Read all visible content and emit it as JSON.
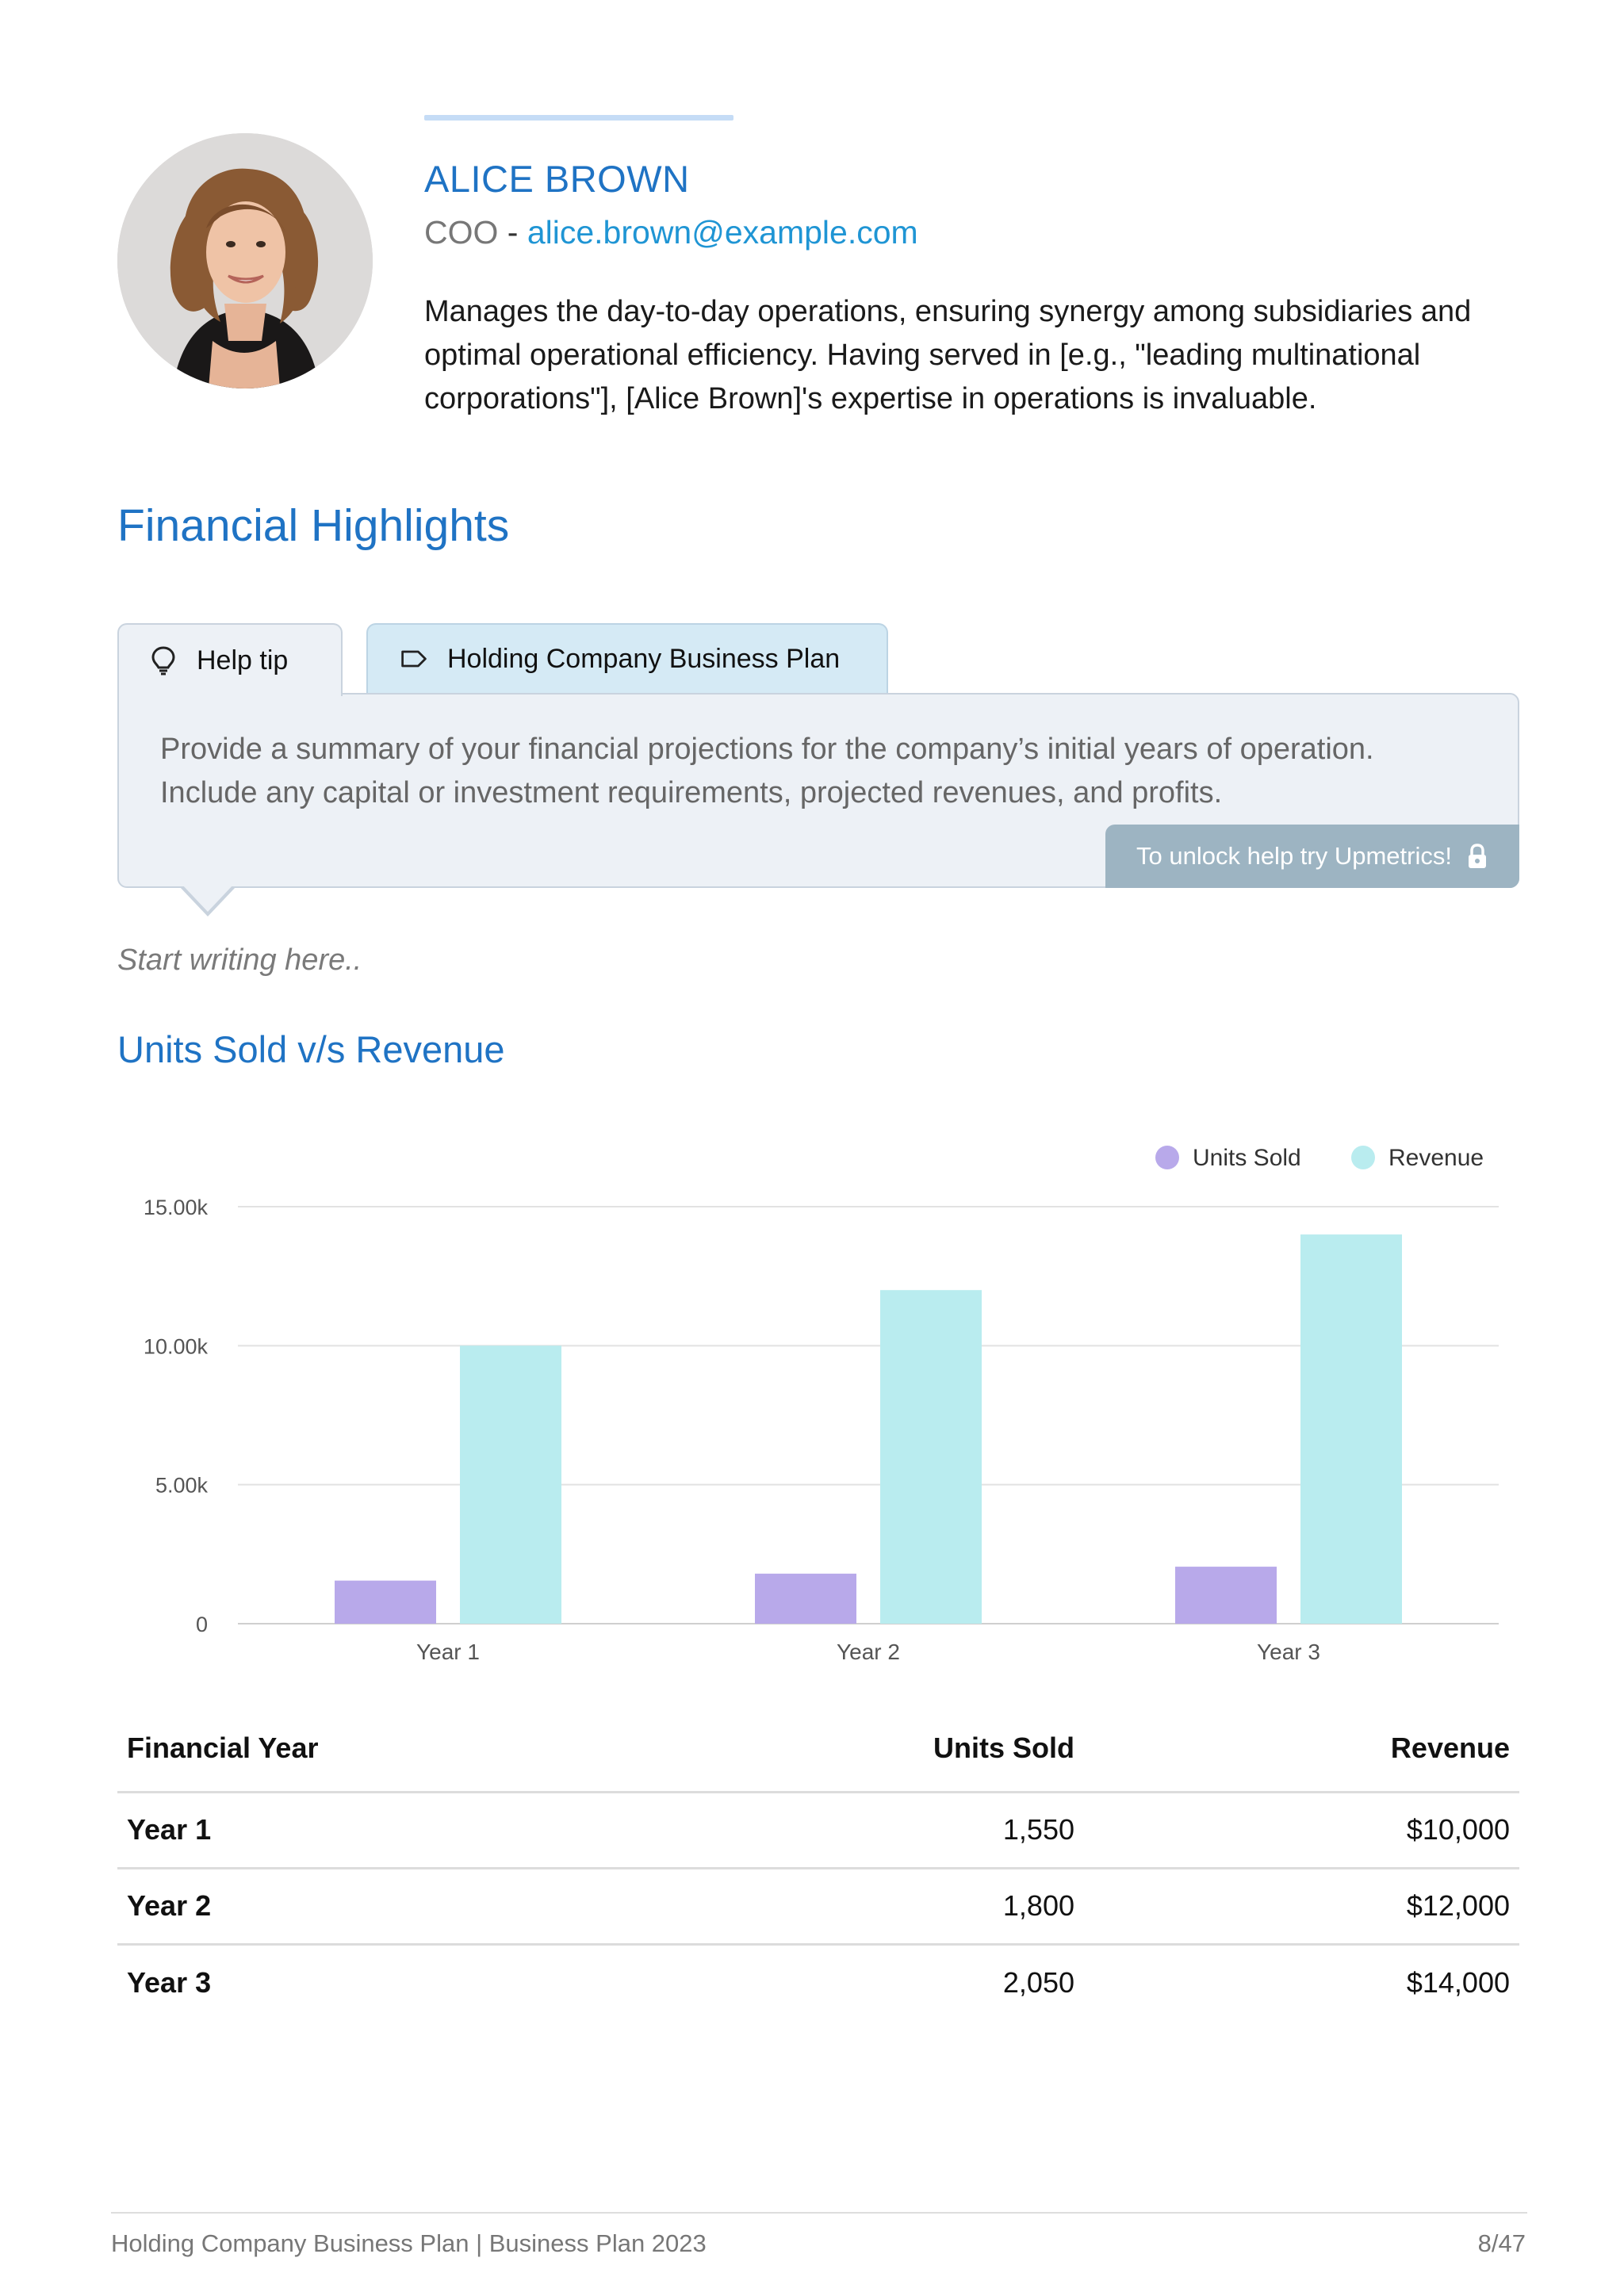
{
  "profile": {
    "name": "ALICE BROWN",
    "role": "COO",
    "separator": " - ",
    "email": "alice.brown@example.com",
    "bio": "Manages the day-to-day operations, ensuring synergy among subsidiaries and optimal operational efficiency. Having served in [e.g., \"leading multinational corporations\"], [Alice Brown]'s expertise in operations is invaluable."
  },
  "section": {
    "title": "Financial Highlights"
  },
  "help_tip": {
    "tab_label": "Help tip",
    "plan_tab_label": "Holding Company Business Plan",
    "text": "Provide a summary of your financial projections for the company’s initial years of operation. Include any capital or investment requirements, projected revenues, and profits.",
    "unlock_label": "To unlock help try Upmetrics!"
  },
  "editor": {
    "placeholder": "Start writing here.."
  },
  "chart_title": "Units Sold v/s Revenue",
  "chart_data": {
    "type": "bar",
    "categories": [
      "Year 1",
      "Year 2",
      "Year 3"
    ],
    "series": [
      {
        "name": "Units Sold",
        "values": [
          1550,
          1800,
          2050
        ],
        "color": "#b8a9ea"
      },
      {
        "name": "Revenue",
        "values": [
          10000,
          12000,
          14000
        ],
        "color": "#b9ecef"
      }
    ],
    "ylim": [
      0,
      15000
    ],
    "yticks": [
      0,
      5000,
      10000,
      15000
    ],
    "ytick_labels": [
      "0",
      "5.00k",
      "10.00k",
      "15.00k"
    ],
    "grid": true,
    "legend": "top-right"
  },
  "table": {
    "headers": [
      "Financial Year",
      "Units Sold",
      "Revenue"
    ],
    "rows": [
      [
        "Year 1",
        "1,550",
        "$10,000"
      ],
      [
        "Year 2",
        "1,800",
        "$12,000"
      ],
      [
        "Year 3",
        "2,050",
        "$14,000"
      ]
    ]
  },
  "footer": {
    "left": "Holding Company Business Plan | Business Plan 2023",
    "page": "8/47"
  },
  "icons": {
    "tip": "lightbulb-icon",
    "plan": "tag-icon",
    "unlock": "lock-icon"
  }
}
